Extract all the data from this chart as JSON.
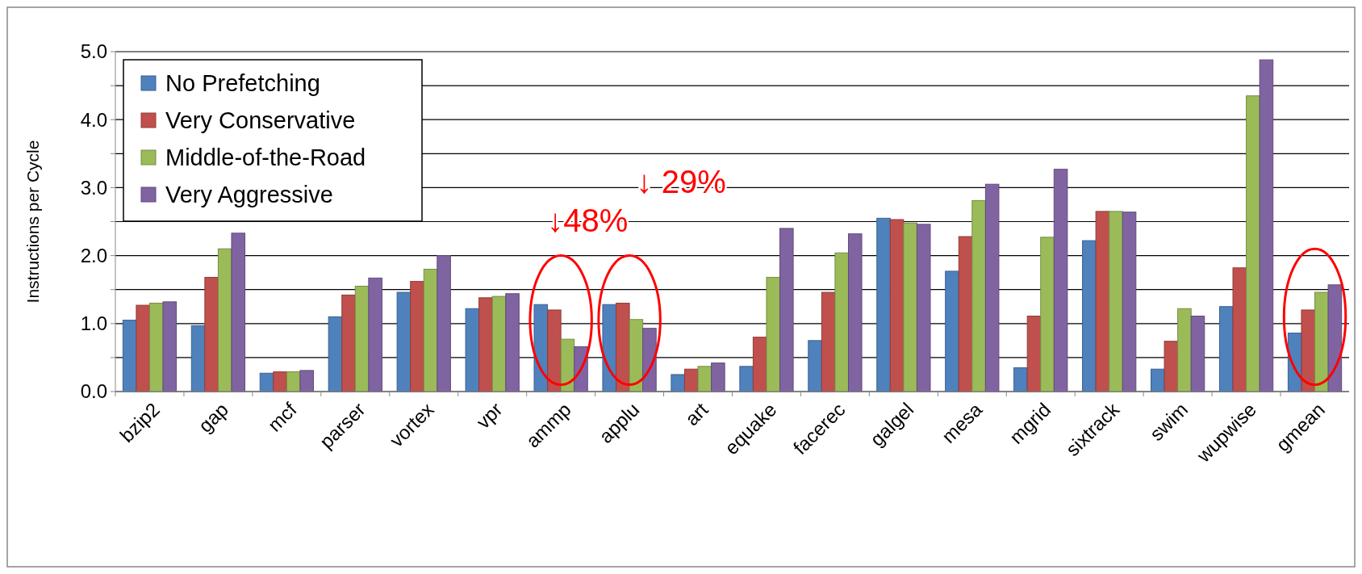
{
  "chart_data": {
    "type": "bar",
    "ylabel": "Instructions per Cycle",
    "categories": [
      "bzip2",
      "gap",
      "mcf",
      "parser",
      "vortex",
      "vpr",
      "ammp",
      "applu",
      "art",
      "equake",
      "facerec",
      "galgel",
      "mesa",
      "mgrid",
      "sixtrack",
      "swim",
      "wupwise",
      "gmean"
    ],
    "series": [
      {
        "name": "No Prefetching",
        "color": "#4f81bd",
        "values": [
          1.05,
          0.97,
          0.27,
          1.1,
          1.46,
          1.22,
          1.28,
          1.28,
          0.25,
          0.37,
          0.75,
          2.55,
          1.77,
          0.35,
          2.22,
          0.33,
          1.25,
          0.86
        ]
      },
      {
        "name": "Very Conservative",
        "color": "#c0504d",
        "values": [
          1.27,
          1.68,
          0.29,
          1.42,
          1.62,
          1.38,
          1.2,
          1.3,
          0.33,
          0.8,
          1.46,
          2.53,
          2.28,
          1.11,
          2.65,
          0.74,
          1.82,
          1.2
        ]
      },
      {
        "name": "Middle-of-the-Road",
        "color": "#9bbb59",
        "values": [
          1.3,
          2.1,
          0.29,
          1.55,
          1.8,
          1.4,
          0.77,
          1.06,
          0.37,
          1.68,
          2.04,
          2.48,
          2.81,
          2.27,
          2.65,
          1.22,
          4.35,
          1.46
        ]
      },
      {
        "name": "Very Aggressive",
        "color": "#8064a2",
        "values": [
          1.32,
          2.33,
          0.31,
          1.67,
          2.0,
          1.44,
          0.66,
          0.93,
          0.42,
          2.4,
          2.32,
          2.46,
          3.05,
          3.27,
          2.64,
          1.11,
          4.88,
          1.57
        ]
      }
    ],
    "ylim": [
      0,
      5
    ],
    "yticks": [
      {
        "value": 0,
        "label": "0.0"
      },
      {
        "value": 0.5,
        "label": null
      },
      {
        "value": 1,
        "label": "1.0"
      },
      {
        "value": 1.5,
        "label": null
      },
      {
        "value": 2,
        "label": "2.0"
      },
      {
        "value": 2.5,
        "label": null
      },
      {
        "value": 3,
        "label": "3.0"
      },
      {
        "value": 3.5,
        "label": null
      },
      {
        "value": 4,
        "label": "4.0"
      },
      {
        "value": 4.5,
        "label": null
      },
      {
        "value": 5,
        "label": "5.0"
      }
    ],
    "grid": "y",
    "legend": "top left",
    "annotations": [
      "↓48%",
      "↓ 29%"
    ]
  }
}
